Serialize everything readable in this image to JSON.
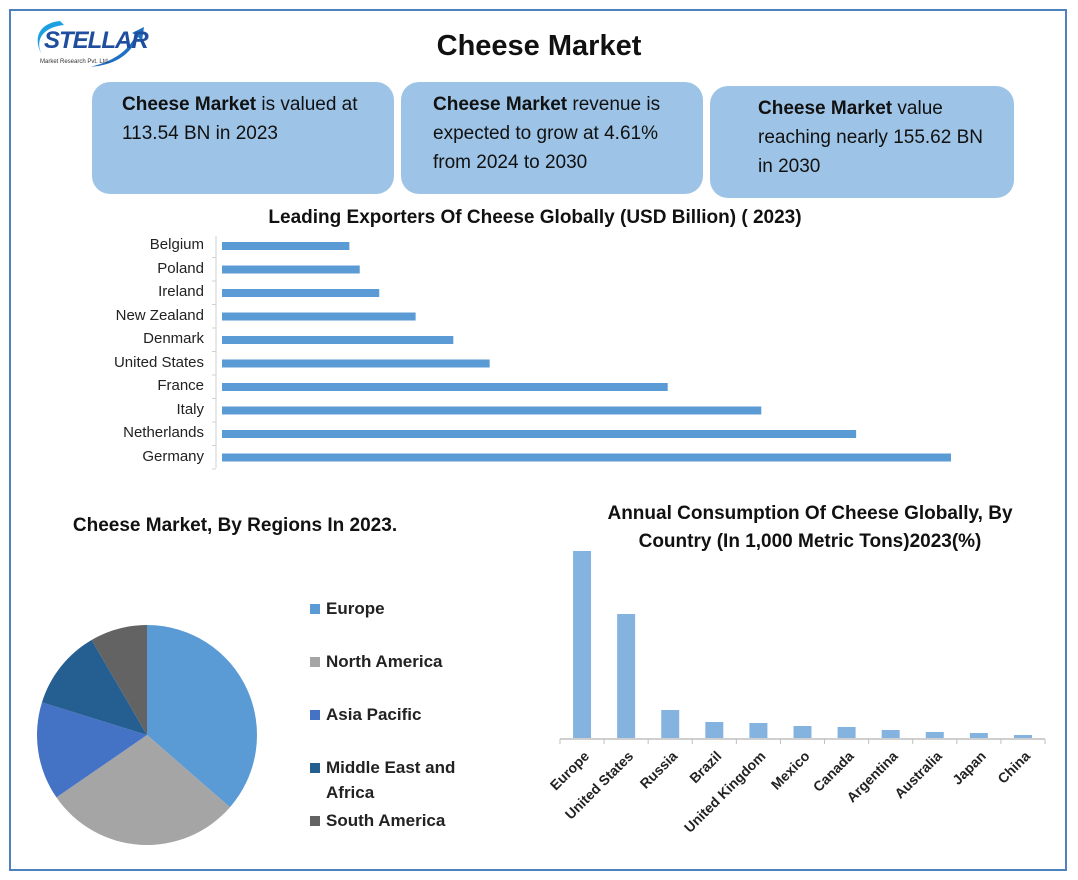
{
  "header": {
    "title": "Cheese Market",
    "logo_text": "STELLAR",
    "logo_sub": "Market Research Pvt. Ltd."
  },
  "stats": [
    {
      "bold": "Cheese Market",
      "text": " is valued at 113.54 BN in 2023"
    },
    {
      "bold": "Cheese Market",
      "text": " revenue is expected to grow at 4.61% from 2024 to 2030"
    },
    {
      "bold": "Cheese Market",
      "text": " value reaching nearly 155.62 BN in 2030"
    }
  ],
  "chart_data": [
    {
      "type": "bar",
      "orientation": "horizontal",
      "title": "Leading Exporters Of Cheese Globally (USD Billion) ( 2023)",
      "categories": [
        "Belgium",
        "Poland",
        "Ireland",
        "New Zealand",
        "Denmark",
        "United States",
        "France",
        "Italy",
        "Netherlands",
        "Germany"
      ],
      "values": [
        0.98,
        1.06,
        1.21,
        1.49,
        1.78,
        2.06,
        3.43,
        4.15,
        4.88,
        5.61
      ],
      "color": "#5b9bd5",
      "grid": false
    },
    {
      "type": "pie",
      "title": "Cheese Market, By Regions In 2023.",
      "legend": "right",
      "categories": [
        "Europe",
        "North America",
        "Asia Pacific",
        "Middle East and Africa",
        "South America"
      ],
      "values": [
        36.4,
        29.0,
        14.4,
        11.8,
        8.4
      ],
      "colors": [
        "#5b9bd5",
        "#a5a5a5",
        "#4472c4",
        "#255e91",
        "#636363"
      ]
    },
    {
      "type": "bar",
      "title": "Annual Consumption Of Cheese Globally, By Country (In 1,000 Metric Tons)2023(%)",
      "categories": [
        "Europe",
        "United States",
        "Russia",
        "Brazil",
        "United Kingdom",
        "Mexico",
        "Canada",
        "Argentina",
        "Australia",
        "Japan",
        "China"
      ],
      "values": [
        9350,
        6200,
        1400,
        800,
        750,
        600,
        550,
        400,
        300,
        250,
        150
      ],
      "color": "#85b3e0",
      "grid": false
    }
  ]
}
